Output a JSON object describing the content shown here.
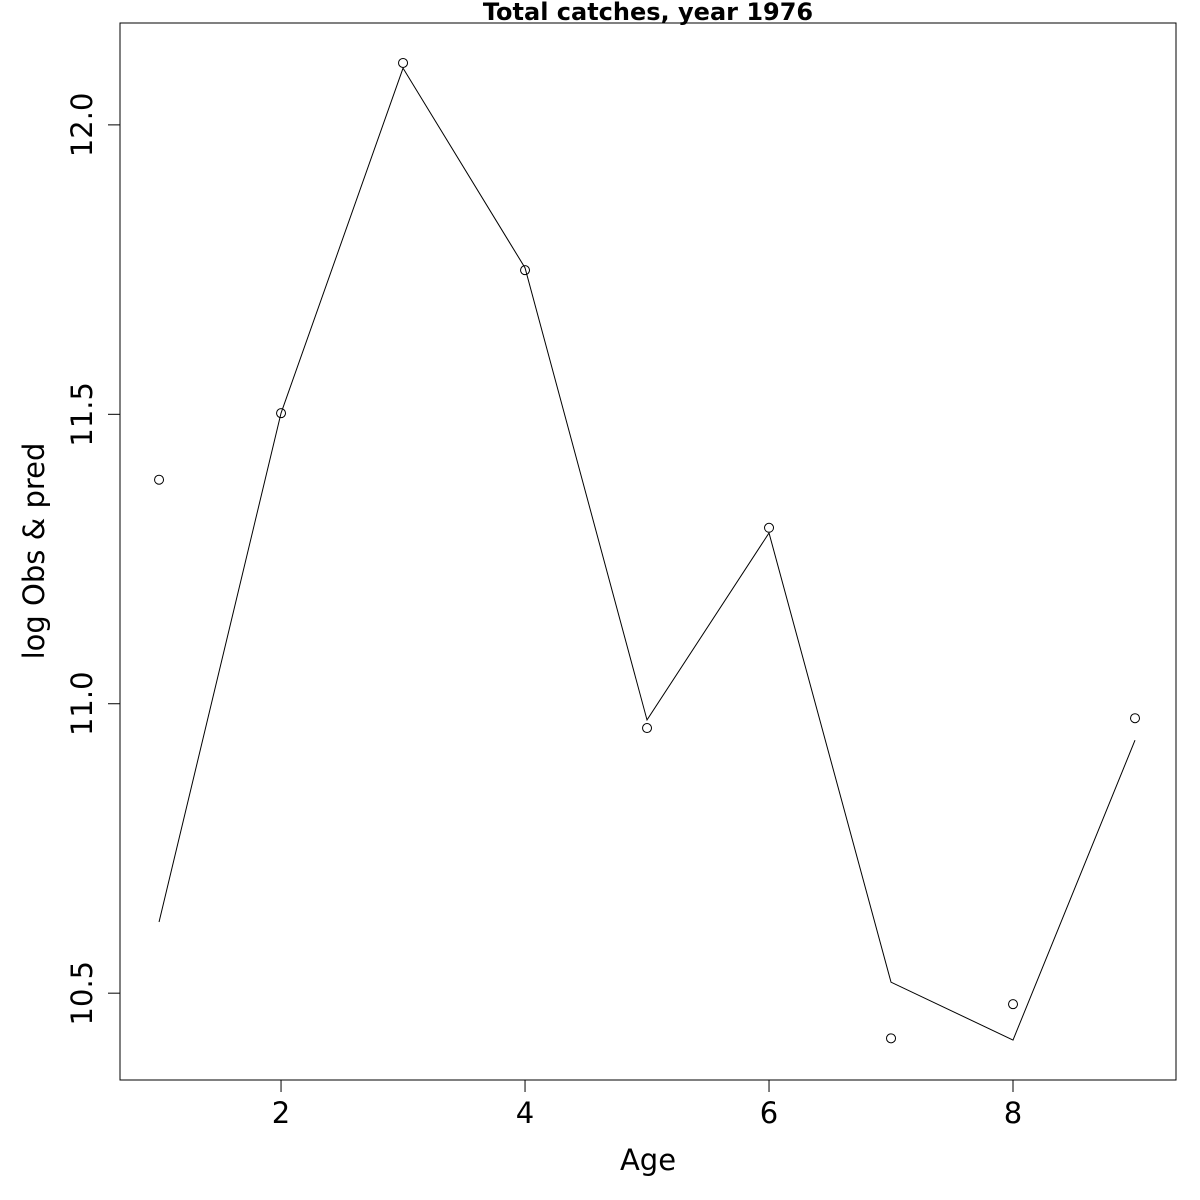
{
  "chart_data": {
    "type": "line",
    "title": "Total catches, year 1976",
    "x_label": "Age",
    "y_label": "log Obs & pred",
    "x": [
      1,
      2,
      3,
      4,
      5,
      6,
      7,
      8,
      9
    ],
    "series": [
      {
        "mode": "points",
        "color": "#000000",
        "values": [
          11.387,
          11.502,
          12.107,
          11.749,
          10.958,
          11.304,
          10.422,
          10.481,
          10.975
        ]
      },
      {
        "mode": "line",
        "color": "#000000",
        "values": [
          10.623,
          11.502,
          12.098,
          11.753,
          10.972,
          11.295,
          10.519,
          10.419,
          10.937
        ]
      }
    ],
    "xlim": [
      0.68,
      9.336
    ],
    "ylim": [
      10.35,
      12.176
    ],
    "xticks": [
      2,
      4,
      6,
      8
    ],
    "yticks": [
      10.5,
      {
        "value": 11,
        "label": "11.0"
      },
      11.5,
      {
        "value": 12,
        "label": "12.0"
      }
    ]
  }
}
